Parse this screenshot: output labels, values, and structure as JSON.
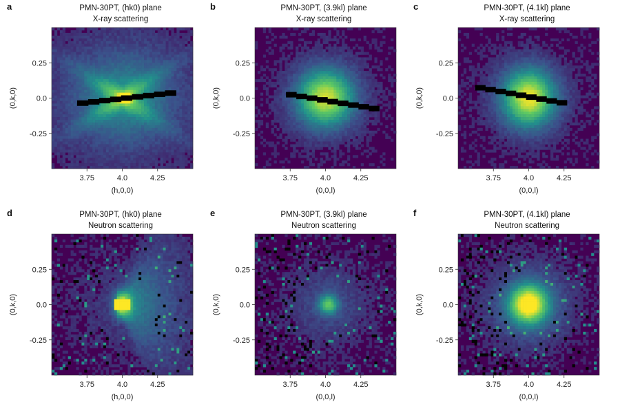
{
  "chart_data": [
    {
      "panel": "a",
      "type": "heatmap",
      "title": "PMN-30PT, (hk0) plane",
      "subtitle": "X-ray scattering",
      "xlabel": "(h,0,0)",
      "ylabel": "(0,k,0)",
      "xlim": [
        3.5,
        4.5
      ],
      "ylim": [
        -0.5,
        0.5
      ],
      "xticks": [
        "3.75",
        "4.0",
        "4.25"
      ],
      "yticks": [
        "0.25",
        "0.0",
        "-0.25"
      ],
      "colormap": [
        "#440154",
        "#3b528b",
        "#21918c",
        "#5ec962",
        "#fde725"
      ],
      "features": [
        {
          "kind": "peak",
          "center": [
            4.02,
            0.0
          ],
          "sigma": [
            0.03,
            0.02
          ],
          "intensity": 1.0
        },
        {
          "kind": "butterfly",
          "center": [
            4.0,
            0.0
          ],
          "extent": 0.45,
          "intensity": 0.45
        }
      ],
      "mask_line": {
        "from": [
          3.68,
          -0.04
        ],
        "to": [
          4.38,
          0.04
        ]
      }
    },
    {
      "panel": "b",
      "type": "heatmap",
      "title": "PMN-30PT, (3.9kl) plane",
      "subtitle": "X-ray scattering",
      "xlabel": "(0,0,l)",
      "ylabel": "(0,k,0)",
      "xlim": [
        3.5,
        4.5
      ],
      "ylim": [
        -0.5,
        0.5
      ],
      "xticks": [
        "3.75",
        "4.0",
        "4.25"
      ],
      "yticks": [
        "0.25",
        "0.0",
        "-0.25"
      ],
      "colormap": [
        "#440154",
        "#3b528b",
        "#21918c",
        "#5ec962",
        "#fde725"
      ],
      "features": [
        {
          "kind": "peak",
          "center": [
            4.0,
            0.0
          ],
          "sigma": [
            0.12,
            0.12
          ],
          "intensity": 0.75
        }
      ],
      "mask_line": {
        "from": [
          3.72,
          0.03
        ],
        "to": [
          4.38,
          -0.08
        ]
      }
    },
    {
      "panel": "c",
      "type": "heatmap",
      "title": "PMN-30PT, (4.1kl) plane",
      "subtitle": "X-ray scattering",
      "xlabel": "(0,0,l)",
      "ylabel": "(0,k,0)",
      "xlim": [
        3.5,
        4.5
      ],
      "ylim": [
        -0.5,
        0.5
      ],
      "xticks": [
        "3.75",
        "4.0",
        "4.25"
      ],
      "yticks": [
        "0.25",
        "0.0",
        "-0.25"
      ],
      "colormap": [
        "#440154",
        "#3b528b",
        "#21918c",
        "#5ec962",
        "#fde725"
      ],
      "features": [
        {
          "kind": "peak",
          "center": [
            4.0,
            0.0
          ],
          "sigma": [
            0.11,
            0.12
          ],
          "intensity": 0.8
        }
      ],
      "mask_line": {
        "from": [
          3.62,
          0.08
        ],
        "to": [
          4.27,
          -0.04
        ]
      }
    },
    {
      "panel": "d",
      "type": "heatmap",
      "title": "PMN-30PT, (hk0) plane",
      "subtitle": "Neutron scattering",
      "xlabel": "(h,0,0)",
      "ylabel": "(0,k,0)",
      "xlim": [
        3.5,
        4.5
      ],
      "ylim": [
        -0.5,
        0.5
      ],
      "xticks": [
        "3.75",
        "4.0",
        "4.25"
      ],
      "yticks": [
        "0.25",
        "0.0",
        "-0.25"
      ],
      "colormap": [
        "#440154",
        "#3b528b",
        "#21918c",
        "#5ec962",
        "#fde725"
      ],
      "features": [
        {
          "kind": "block",
          "center": [
            4.0,
            0.0
          ],
          "half_size": [
            0.05,
            0.04
          ],
          "intensity": 1.0
        },
        {
          "kind": "wedge",
          "center": [
            4.05,
            0.0
          ],
          "extent": 0.35,
          "intensity": 0.5
        }
      ],
      "noise": "sparse-dark"
    },
    {
      "panel": "e",
      "type": "heatmap",
      "title": "PMN-30PT, (3.9kl) plane",
      "subtitle": "Neutron scattering",
      "xlabel": "(0,0,l)",
      "ylabel": "(0,k,0)",
      "xlim": [
        3.5,
        4.5
      ],
      "ylim": [
        -0.5,
        0.5
      ],
      "xticks": [
        "3.75",
        "4.0",
        "4.25"
      ],
      "yticks": [
        "0.25",
        "0.0",
        "-0.25"
      ],
      "colormap": [
        "#440154",
        "#3b528b",
        "#21918c",
        "#5ec962",
        "#fde725"
      ],
      "features": [
        {
          "kind": "peak",
          "center": [
            4.02,
            0.0
          ],
          "sigma": [
            0.045,
            0.045
          ],
          "intensity": 0.55
        }
      ],
      "noise": "sparse-dark-left"
    },
    {
      "panel": "f",
      "type": "heatmap",
      "title": "PMN-30PT, (4.1kl) plane",
      "subtitle": "Neutron scattering",
      "xlabel": "(0,0,l)",
      "ylabel": "(0,k,0)",
      "xlim": [
        3.5,
        4.5
      ],
      "ylim": [
        -0.5,
        0.5
      ],
      "xticks": [
        "3.75",
        "4.0",
        "4.25"
      ],
      "yticks": [
        "0.25",
        "0.0",
        "-0.25"
      ],
      "colormap": [
        "#440154",
        "#3b528b",
        "#21918c",
        "#5ec962",
        "#fde725"
      ],
      "features": [
        {
          "kind": "peak",
          "center": [
            4.0,
            0.0
          ],
          "sigma": [
            0.085,
            0.085
          ],
          "intensity": 1.0
        }
      ],
      "noise": "sparse-dark-left"
    }
  ]
}
